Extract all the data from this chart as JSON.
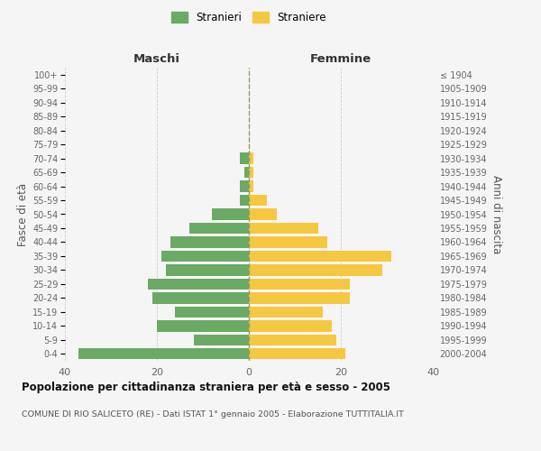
{
  "age_groups": [
    "0-4",
    "5-9",
    "10-14",
    "15-19",
    "20-24",
    "25-29",
    "30-34",
    "35-39",
    "40-44",
    "45-49",
    "50-54",
    "55-59",
    "60-64",
    "65-69",
    "70-74",
    "75-79",
    "80-84",
    "85-89",
    "90-94",
    "95-99",
    "100+"
  ],
  "birth_years": [
    "2000-2004",
    "1995-1999",
    "1990-1994",
    "1985-1989",
    "1980-1984",
    "1975-1979",
    "1970-1974",
    "1965-1969",
    "1960-1964",
    "1955-1959",
    "1950-1954",
    "1945-1949",
    "1940-1944",
    "1935-1939",
    "1930-1934",
    "1925-1929",
    "1920-1924",
    "1915-1919",
    "1910-1914",
    "1905-1909",
    "≤ 1904"
  ],
  "maschi": [
    37,
    12,
    20,
    16,
    21,
    22,
    18,
    19,
    17,
    13,
    8,
    2,
    2,
    1,
    2,
    0,
    0,
    0,
    0,
    0,
    0
  ],
  "femmine": [
    21,
    19,
    18,
    16,
    22,
    22,
    29,
    31,
    17,
    15,
    6,
    4,
    1,
    1,
    1,
    0,
    0,
    0,
    0,
    0,
    0
  ],
  "maschi_color": "#6aaa64",
  "femmine_color": "#f5c842",
  "background_color": "#f5f5f5",
  "grid_color": "#cccccc",
  "title": "Popolazione per cittadinanza straniera per età e sesso - 2005",
  "subtitle": "COMUNE DI RIO SALICETO (RE) - Dati ISTAT 1° gennaio 2005 - Elaborazione TUTTITALIA.IT",
  "ylabel_left": "Fasce di età",
  "ylabel_right": "Anni di nascita",
  "xlabel_maschi": "Maschi",
  "xlabel_femmine": "Femmine",
  "legend_maschi": "Stranieri",
  "legend_femmine": "Straniere",
  "xlim": 40
}
